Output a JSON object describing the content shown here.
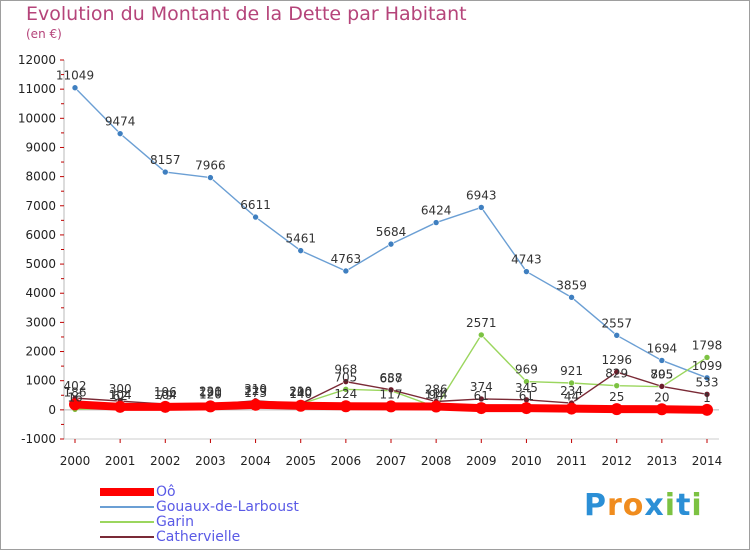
{
  "title": "Evolution du Montant de la Dette par Habitant",
  "subtitle": "(en €)",
  "logo": {
    "text": "Proxiti",
    "colors": [
      "#2b8fd6",
      "#f08c1e",
      "#f08c1e",
      "#2b8fd6",
      "#7cc242",
      "#2b8fd6",
      "#7cc242"
    ]
  },
  "chart_data": {
    "type": "line",
    "x": [
      "2000",
      "2001",
      "2002",
      "2003",
      "2004",
      "2005",
      "2006",
      "2007",
      "2008",
      "2009",
      "2010",
      "2011",
      "2012",
      "2013",
      "2014"
    ],
    "ylim": [
      -1000,
      12000
    ],
    "yticks": [
      "-1000",
      "0",
      "1000",
      "2000",
      "3000",
      "4000",
      "5000",
      "6000",
      "7000",
      "8000",
      "9000",
      "10000",
      "11000",
      "12000"
    ],
    "legend_position": "bottom-left",
    "series": [
      {
        "name": "Gouaux-de-Larboust",
        "color": "#6b9fd4",
        "marker": "#3f7fc0",
        "values": [
          11049,
          9474,
          8157,
          7966,
          6611,
          5461,
          4763,
          5684,
          6424,
          6943,
          4743,
          3859,
          2557,
          1694,
          1099
        ],
        "labels": [
          "11049",
          "9474",
          "8157",
          "7966",
          "6611",
          "5461",
          "4763",
          "5684",
          "6424",
          "6943",
          "4743",
          "3859",
          "2557",
          "1694",
          "1099"
        ]
      },
      {
        "name": "Garin",
        "color": "#9bd65e",
        "marker": "#7cc242",
        "values": [
          16,
          62,
          79,
          220,
          229,
          200,
          705,
          657,
          94,
          2571,
          969,
          921,
          829,
          795,
          1798
        ],
        "labels": [
          "16",
          "62",
          "79",
          "220",
          "229",
          "200",
          "705",
          "657",
          "94",
          "2571",
          "969",
          "921",
          "829",
          "795",
          "1798"
        ]
      },
      {
        "name": "Cathervielle",
        "color": "#7a2a36",
        "marker": "#6b1d2a",
        "values": [
          402,
          300,
          196,
          191,
          310,
          210,
          968,
          688,
          286,
          374,
          345,
          234,
          1296,
          805,
          533
        ],
        "labels": [
          "402",
          "300",
          "196",
          "191",
          "310",
          "210",
          "968",
          "688",
          "286",
          "374",
          "345",
          "234",
          "1296",
          "805",
          "533"
        ]
      },
      {
        "name": "Oô",
        "color": "#ff0000",
        "marker": "#ff0000",
        "thick": true,
        "values": [
          186,
          104,
          104,
          120,
          173,
          140,
          124,
          117,
          114,
          61,
          61,
          44,
          25,
          20,
          1
        ],
        "labels": [
          "186",
          "104",
          "104",
          "120",
          "173",
          "140",
          "124",
          "117",
          "114",
          "61",
          "61",
          "44",
          "25",
          "20",
          "1"
        ]
      }
    ],
    "legend_order": [
      "Oô",
      "Gouaux-de-Larboust",
      "Garin",
      "Cathervielle"
    ]
  }
}
